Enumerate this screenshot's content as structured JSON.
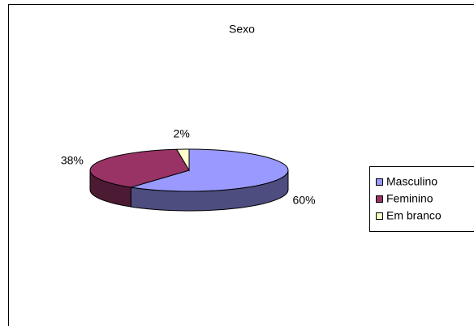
{
  "chart_data": {
    "type": "pie",
    "title": "Sexo",
    "categories": [
      "Masculino",
      "Feminino",
      "Em branco"
    ],
    "values": [
      60,
      38,
      2
    ],
    "value_labels": [
      "60%",
      "38%",
      "2%"
    ],
    "colors": [
      "#9999ff",
      "#993366",
      "#ffffcc"
    ],
    "legend": "right"
  }
}
